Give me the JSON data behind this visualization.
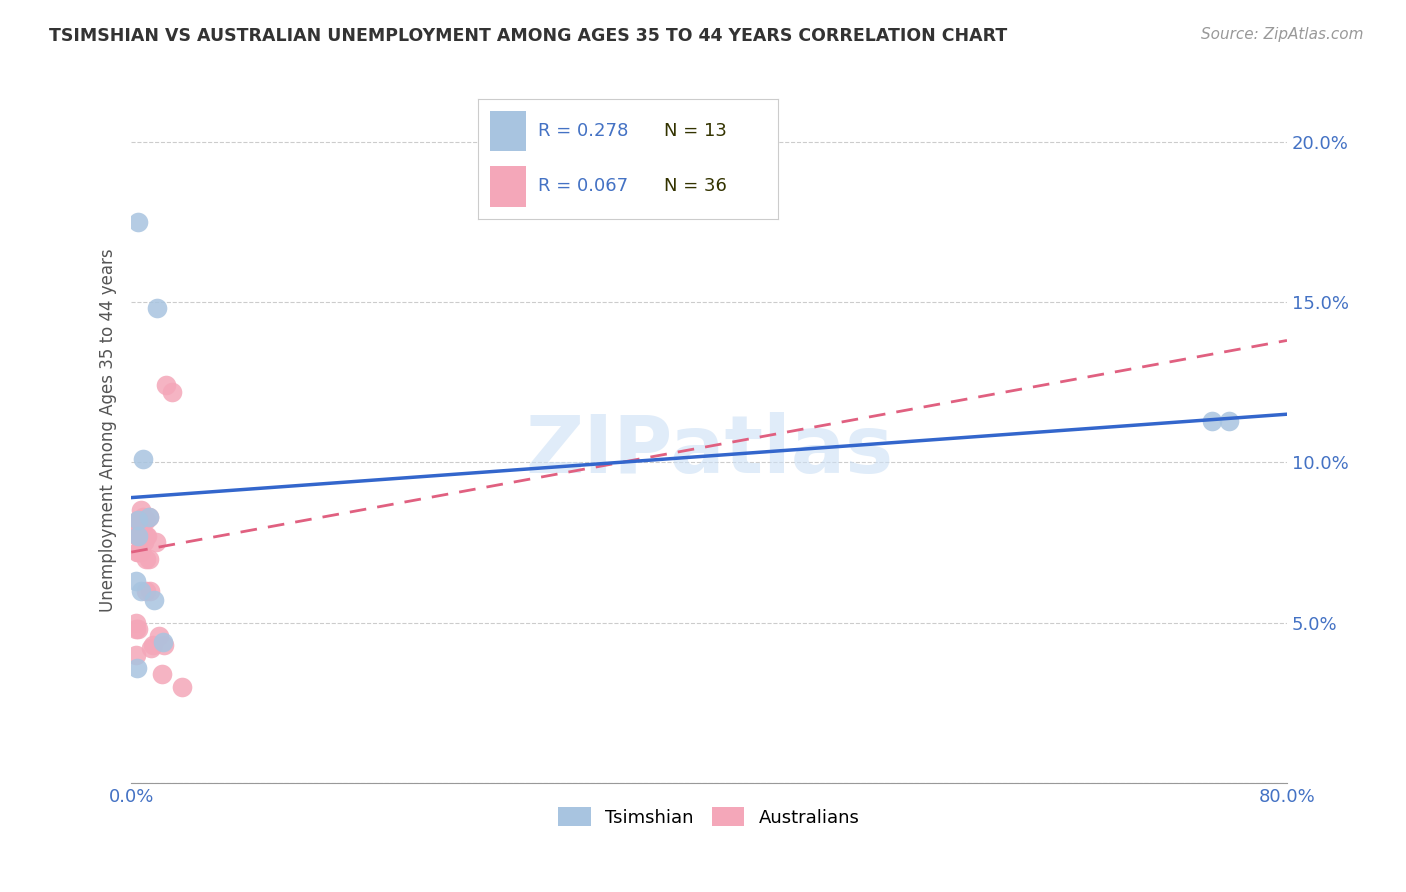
{
  "title": "TSIMSHIAN VS AUSTRALIAN UNEMPLOYMENT AMONG AGES 35 TO 44 YEARS CORRELATION CHART",
  "source": "Source: ZipAtlas.com",
  "ylabel": "Unemployment Among Ages 35 to 44 years",
  "xlim": [
    0,
    0.8
  ],
  "ylim": [
    0,
    0.22
  ],
  "xticks": [
    0.0,
    0.1,
    0.2,
    0.3,
    0.4,
    0.5,
    0.6,
    0.7,
    0.8
  ],
  "xticklabels": [
    "0.0%",
    "",
    "",
    "",
    "",
    "",
    "",
    "",
    "80.0%"
  ],
  "yticks": [
    0.0,
    0.05,
    0.1,
    0.15,
    0.2
  ],
  "yticklabels": [
    "",
    "5.0%",
    "10.0%",
    "15.0%",
    "20.0%"
  ],
  "tsimshian_x": [
    0.005,
    0.018,
    0.008,
    0.012,
    0.005,
    0.005,
    0.003,
    0.007,
    0.016,
    0.022,
    0.748,
    0.76,
    0.004
  ],
  "tsimshian_y": [
    0.175,
    0.148,
    0.101,
    0.083,
    0.082,
    0.077,
    0.063,
    0.06,
    0.057,
    0.044,
    0.113,
    0.113,
    0.036
  ],
  "australians_x": [
    0.003,
    0.003,
    0.003,
    0.004,
    0.004,
    0.005,
    0.005,
    0.005,
    0.005,
    0.005,
    0.006,
    0.006,
    0.007,
    0.007,
    0.007,
    0.008,
    0.008,
    0.008,
    0.009,
    0.01,
    0.01,
    0.01,
    0.01,
    0.011,
    0.012,
    0.012,
    0.013,
    0.014,
    0.015,
    0.017,
    0.019,
    0.021,
    0.023,
    0.024,
    0.028,
    0.035
  ],
  "australians_y": [
    0.05,
    0.048,
    0.04,
    0.077,
    0.072,
    0.082,
    0.08,
    0.078,
    0.072,
    0.048,
    0.082,
    0.076,
    0.085,
    0.078,
    0.072,
    0.083,
    0.082,
    0.078,
    0.075,
    0.082,
    0.077,
    0.07,
    0.06,
    0.077,
    0.083,
    0.07,
    0.06,
    0.042,
    0.043,
    0.075,
    0.046,
    0.034,
    0.043,
    0.124,
    0.122,
    0.03
  ],
  "tsimshian_color": "#a8c4e0",
  "australians_color": "#f4a7b9",
  "tsimshian_line_color": "#3366cc",
  "australians_line_color": "#e06080",
  "legend_R_color": "#4472c4",
  "legend_N_color": "#333300",
  "watermark": "ZIPatlas",
  "background_color": "#ffffff",
  "grid_color": "#cccccc",
  "tsimshian_trendline_x": [
    0.0,
    0.8
  ],
  "tsimshian_trendline_y": [
    0.089,
    0.115
  ],
  "australians_trendline_x": [
    0.0,
    0.8
  ],
  "australians_trendline_y": [
    0.072,
    0.138
  ]
}
